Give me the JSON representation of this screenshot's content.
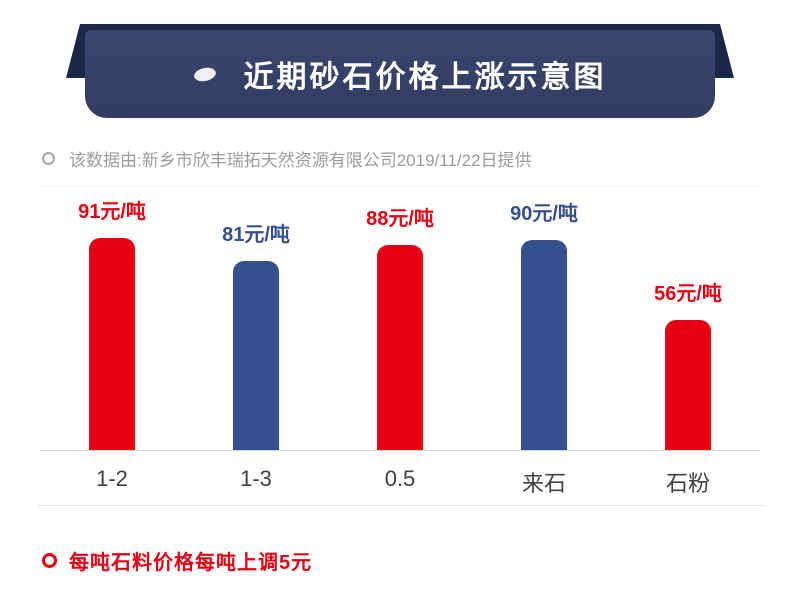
{
  "header": {
    "title": "近期砂石价格上涨示意图"
  },
  "source_note": {
    "text": "该数据由:新乡市欣丰瑞拓天然资源有限公司2019/11/22日提供"
  },
  "chart_data": {
    "type": "bar",
    "title": "近期砂石价格上涨示意图",
    "categories": [
      "1-2",
      "1-3",
      "0.5",
      "来石",
      "石粉"
    ],
    "values": [
      91,
      81,
      88,
      90,
      56
    ],
    "labels": [
      "91元/吨",
      "81元/吨",
      "88元/吨",
      "90元/吨",
      "56元/吨"
    ],
    "colors": [
      "#e60012",
      "#35508f",
      "#e60012",
      "#35508f",
      "#e60012"
    ],
    "xlabel": "",
    "ylabel": "",
    "ylim": [
      0,
      100
    ],
    "grid": false,
    "legend": "none"
  },
  "footer_note": {
    "text": "每吨石料价格每吨上调5元"
  },
  "colors": {
    "red": "#e60012",
    "blue": "#35508f",
    "banner": "#333f63",
    "banner_back": "#1b2746",
    "gray_text": "#9b9b9b"
  }
}
